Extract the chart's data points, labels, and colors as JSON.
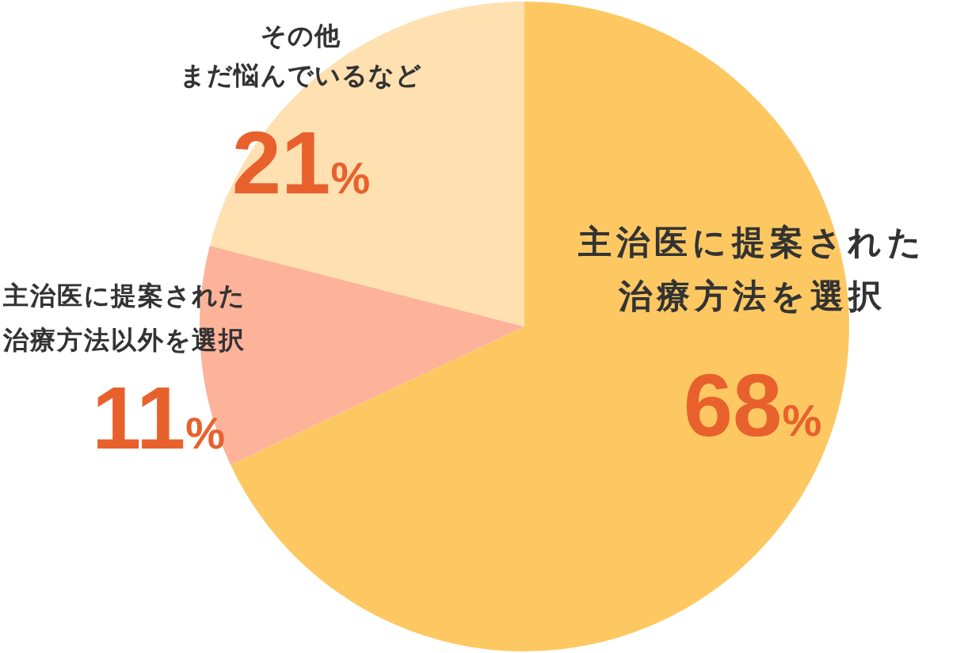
{
  "chart_data": {
    "type": "pie",
    "categories": [
      "主治医に提案された治療方法を選択",
      "主治医に提案された治療方法以外を選択",
      "その他まだ悩んでいるなど"
    ],
    "values": [
      68,
      11,
      21
    ],
    "colors": [
      "#fdc862",
      "#fdb29a",
      "#fee0b1"
    ],
    "value_labels": [
      "68%",
      "11%",
      "21%"
    ]
  }
}
